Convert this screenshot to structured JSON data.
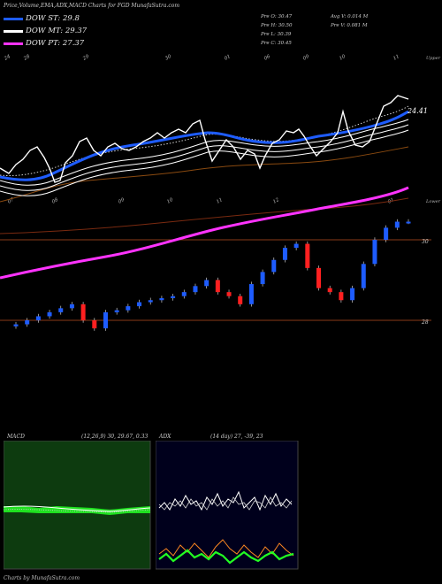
{
  "header": {
    "title": "Price,Volume,EMA,ADX,MACD Charts for FGD MunafaSutra.com"
  },
  "legend": [
    {
      "label": "DOW ST: 29.8",
      "color": "#1e5cff"
    },
    {
      "label": "DOW MT: 29.37",
      "color": "#ffffff"
    },
    {
      "label": "DOW PT: 27.37",
      "color": "#ff33ff"
    }
  ],
  "quote": {
    "pre_o": "Pre  O: 30.47",
    "pre_h": "Pre  H: 30.50",
    "pre_l": "Pre  L: 30.39",
    "pre_c": "Pre  C: 30.45",
    "avg_v": "Avg V: 0.014  M",
    "pre_v": "Pre  V: 0.081 M"
  },
  "main_chart": {
    "top_dates": [
      "24",
      "28",
      "29",
      "30",
      "01",
      "06",
      "09",
      "10",
      "11"
    ],
    "mid_dates": [
      "07",
      "08",
      "09",
      "10",
      "11",
      "12",
      "01"
    ],
    "right_tags": {
      "upper": "Upper",
      "lower": "Lower"
    },
    "price_ticks": [
      "30",
      "28"
    ],
    "last_label": "24.41"
  },
  "chart_data": [
    {
      "type": "line",
      "title": "Price,Volume,EMA,ADX,MACD Charts for FGD MunafaSutra.com",
      "series": [
        {
          "name": "DOW ST",
          "color": "#1e5cff"
        },
        {
          "name": "DOW MT",
          "color": "#ffffff"
        },
        {
          "name": "DOW PT",
          "color": "#ff33ff"
        }
      ],
      "last_values": [
        29.8,
        29.37,
        27.37
      ],
      "candles_ohlc_close": [
        27.9,
        28.0,
        28.1,
        28.2,
        28.3,
        28.4,
        28.0,
        27.8,
        28.2,
        28.25,
        28.35,
        28.45,
        28.5,
        28.55,
        28.6,
        28.7,
        28.85,
        29.0,
        28.7,
        28.6,
        28.4,
        28.9,
        29.2,
        29.5,
        29.8,
        29.9,
        29.3,
        28.8,
        28.7,
        28.5,
        28.8,
        29.4,
        30.0,
        30.3,
        30.45,
        30.45
      ]
    },
    {
      "type": "line",
      "title": "MACD",
      "params": "(12,26,9) 30, 29.67, 0.33",
      "series": [
        {
          "name": "MACD",
          "color": "#ffffff"
        },
        {
          "name": "Signal",
          "color": "#22ff22"
        }
      ],
      "values_label": [
        30,
        29.67,
        0.33
      ]
    },
    {
      "type": "line",
      "title": "ADX",
      "params": "(14 day) 27, -39, 23",
      "series": [
        {
          "name": "ADX",
          "color": "#ffffff"
        },
        {
          "name": "+DI",
          "color": "#22ff22"
        },
        {
          "name": "-DI",
          "color": "#ff8822"
        }
      ],
      "values_label": [
        27,
        -39,
        23
      ]
    }
  ],
  "macd_panel": {
    "title": "MACD",
    "params": "(12,26,9) 30, 29.67, 0.33"
  },
  "adx_panel": {
    "title": "ADX",
    "params": "(14 day) 27, -39, 23"
  },
  "footer": {
    "text": "Charts by MunafaSutra.com"
  }
}
